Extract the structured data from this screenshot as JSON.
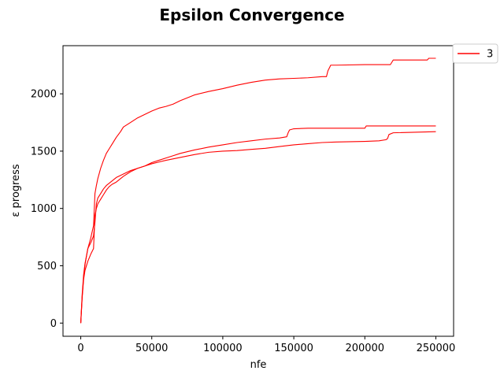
{
  "chart_data": {
    "type": "line",
    "title": "Epsilon Convergence",
    "xlabel": "nfe",
    "ylabel": "ε progress",
    "xlim": [
      -12500,
      262500
    ],
    "ylim": [
      -115,
      2420
    ],
    "xticks": [
      0,
      50000,
      100000,
      150000,
      200000,
      250000
    ],
    "xtick_labels": [
      "0",
      "50000",
      "100000",
      "150000",
      "200000",
      "250000"
    ],
    "yticks": [
      0,
      500,
      1000,
      1500,
      2000
    ],
    "ytick_labels": [
      "0",
      "500",
      "1000",
      "1500",
      "2000"
    ],
    "grid": false,
    "legend": {
      "entries": [
        "3"
      ],
      "placement": "outside-top-right"
    },
    "line_color": "#ff0000",
    "series": [
      {
        "x": [
          0,
          1000,
          2000,
          3000,
          5000,
          7000,
          9000,
          10000,
          11000,
          12000,
          14000,
          16000,
          18000,
          20000,
          22000,
          25000,
          28000,
          30000,
          35000,
          40000,
          45000,
          50000,
          55000,
          60000,
          65000,
          70000,
          75000,
          80000,
          90000,
          100000,
          110000,
          120000,
          130000,
          140000,
          150000,
          160000,
          170000,
          173000,
          174000,
          176000,
          180000,
          200000,
          210000,
          218000,
          219000,
          220000,
          230000,
          244000,
          245000,
          250000
        ],
        "y": [
          0,
          250,
          420,
          520,
          650,
          740,
          850,
          1130,
          1200,
          1260,
          1350,
          1420,
          1480,
          1520,
          1560,
          1620,
          1670,
          1710,
          1750,
          1790,
          1820,
          1850,
          1875,
          1890,
          1910,
          1940,
          1965,
          1990,
          2020,
          2045,
          2075,
          2100,
          2120,
          2130,
          2135,
          2140,
          2150,
          2150,
          2200,
          2250,
          2250,
          2255,
          2255,
          2255,
          2275,
          2295,
          2295,
          2295,
          2310,
          2310
        ]
      },
      {
        "x": [
          0,
          1000,
          2000,
          3000,
          5000,
          7000,
          9000,
          10000,
          11000,
          12000,
          14000,
          16000,
          18000,
          20000,
          22000,
          25000,
          30000,
          35000,
          40000,
          45000,
          50000,
          55000,
          60000,
          65000,
          70000,
          80000,
          90000,
          100000,
          110000,
          120000,
          130000,
          140000,
          145000,
          146000,
          147000,
          150000,
          160000,
          200000,
          201000,
          250000
        ],
        "y": [
          0,
          230,
          390,
          510,
          650,
          700,
          760,
          880,
          1040,
          1090,
          1130,
          1170,
          1200,
          1220,
          1240,
          1270,
          1300,
          1330,
          1350,
          1370,
          1400,
          1420,
          1440,
          1460,
          1480,
          1510,
          1535,
          1555,
          1575,
          1590,
          1605,
          1615,
          1625,
          1660,
          1685,
          1695,
          1700,
          1700,
          1720,
          1720
        ]
      },
      {
        "x": [
          0,
          1000,
          2000,
          3000,
          5000,
          7000,
          9000,
          10000,
          11000,
          12000,
          14000,
          16000,
          18000,
          20000,
          22000,
          25000,
          30000,
          35000,
          40000,
          45000,
          50000,
          55000,
          60000,
          70000,
          80000,
          90000,
          100000,
          110000,
          120000,
          130000,
          140000,
          150000,
          160000,
          170000,
          180000,
          200000,
          210000,
          215000,
          216000,
          217000,
          220000,
          250000
        ],
        "y": [
          0,
          220,
          380,
          460,
          540,
          600,
          650,
          940,
          1000,
          1040,
          1080,
          1120,
          1160,
          1190,
          1210,
          1230,
          1280,
          1320,
          1350,
          1370,
          1390,
          1405,
          1420,
          1445,
          1470,
          1490,
          1500,
          1505,
          1515,
          1525,
          1540,
          1555,
          1565,
          1575,
          1580,
          1585,
          1590,
          1600,
          1610,
          1645,
          1660,
          1670
        ]
      }
    ]
  }
}
